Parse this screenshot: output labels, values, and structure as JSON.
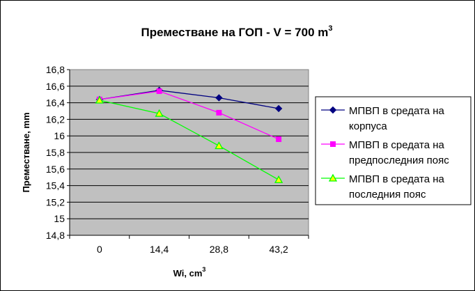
{
  "chart_data": {
    "type": "line",
    "title": "Преместване на ГОП - V = 700 m",
    "title_superscript": "3",
    "xlabel": "Wi, cm",
    "xlabel_superscript": "3",
    "ylabel": "Преместване, mm",
    "categories": [
      "0",
      "14,4",
      "28,8",
      "43,2"
    ],
    "y_ticks": [
      "14,8",
      "15",
      "15,2",
      "15,4",
      "15,6",
      "15,8",
      "16",
      "16,2",
      "16,4",
      "16,6",
      "16,8"
    ],
    "ylim": [
      14.8,
      16.8
    ],
    "grid": true,
    "legend_position": "right",
    "plot_background": "#c0c0c0",
    "series": [
      {
        "name_lines": [
          "МПВП в средата на",
          "корпуса"
        ],
        "values": [
          16.44,
          16.55,
          16.46,
          16.33
        ],
        "color": "#000080",
        "marker": "diamond"
      },
      {
        "name_lines": [
          "МПВП в средата на",
          "предпоследния пояс"
        ],
        "values": [
          16.44,
          16.54,
          16.28,
          15.96
        ],
        "color": "#ff00ff",
        "marker": "square"
      },
      {
        "name_lines": [
          "МПВП в средата на",
          "последния пояс"
        ],
        "values": [
          16.43,
          16.27,
          15.88,
          15.47
        ],
        "color": "#00ff00",
        "marker": "triangle"
      }
    ]
  }
}
